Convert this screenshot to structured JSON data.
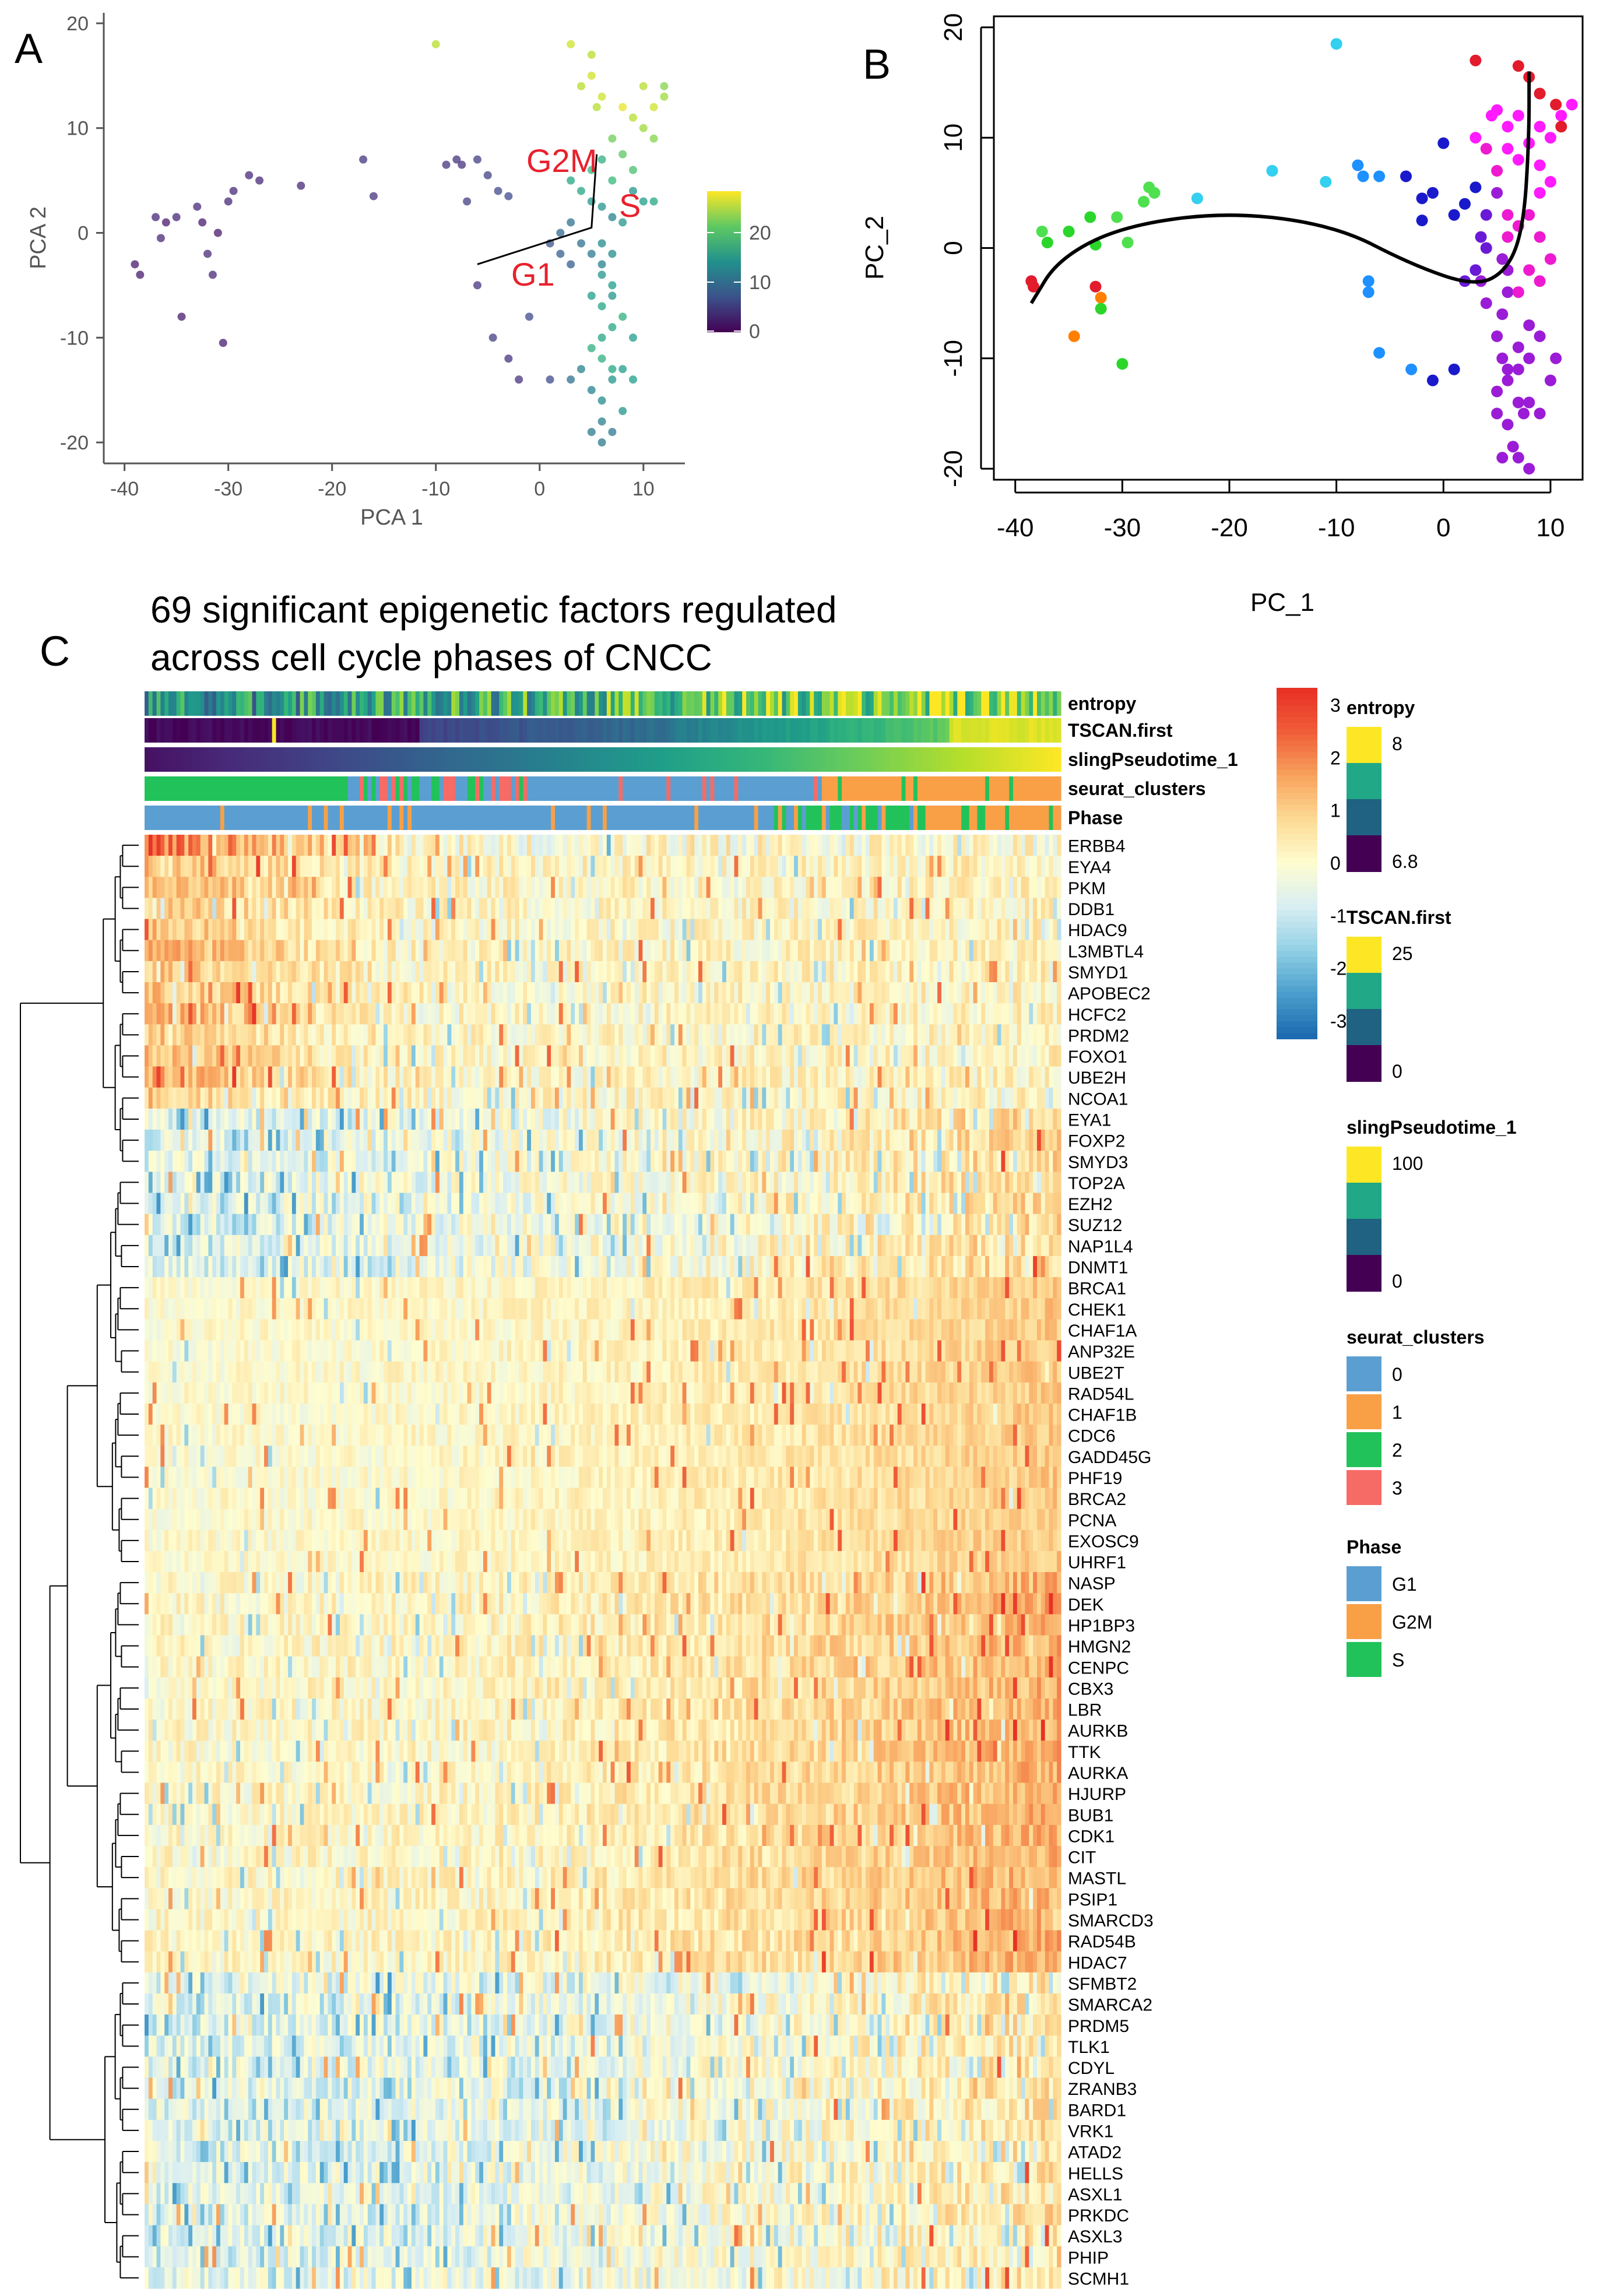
{
  "panels": {
    "a": {
      "letter": "A",
      "xlabel": "PCA 1",
      "ylabel": "PCA 2",
      "colorbar_ticks": [
        "20",
        "10",
        "0"
      ],
      "phase_labels": [
        "G2M",
        "S",
        "G1"
      ]
    },
    "b": {
      "letter": "B",
      "xlabel": "PC_1",
      "ylabel": "PC_2"
    },
    "c": {
      "letter": "C",
      "title_line1": "69 significant epigenetic factors regulated",
      "title_line2": "across cell cycle phases of CNCC"
    }
  },
  "chart_data": [
    {
      "type": "scatter",
      "panel": "A",
      "xlabel": "PCA 1",
      "ylabel": "PCA 2",
      "xlim": [
        -42,
        14
      ],
      "ylim": [
        -22,
        21
      ],
      "xticks": [
        -40,
        -30,
        -20,
        -10,
        0,
        10
      ],
      "yticks": [
        -20,
        -10,
        0,
        10,
        20
      ],
      "color_scale": {
        "name": "viridis",
        "range": [
          0,
          27
        ],
        "ticks": [
          0,
          10,
          20
        ]
      },
      "points": [
        [
          -39,
          -3,
          2
        ],
        [
          -38.5,
          -4,
          2
        ],
        [
          -37,
          1.5,
          3
        ],
        [
          -36.5,
          -0.5,
          3
        ],
        [
          -36,
          1,
          2
        ],
        [
          -35,
          1.5,
          3
        ],
        [
          -34.5,
          -8,
          2
        ],
        [
          -33,
          2.5,
          3
        ],
        [
          -32.5,
          1,
          2
        ],
        [
          -32,
          -2,
          3
        ],
        [
          -31.5,
          -4,
          3
        ],
        [
          -31,
          0,
          2
        ],
        [
          -30.5,
          -10.5,
          2
        ],
        [
          -30,
          3,
          3
        ],
        [
          -29.5,
          4,
          3
        ],
        [
          -28,
          5.5,
          3
        ],
        [
          -27,
          5,
          3
        ],
        [
          -23,
          4.5,
          3
        ],
        [
          -17,
          7,
          4
        ],
        [
          -16,
          3.5,
          4
        ],
        [
          -9,
          6.5,
          4
        ],
        [
          -8,
          7,
          4
        ],
        [
          -7.5,
          6.5,
          4
        ],
        [
          -7,
          3,
          5
        ],
        [
          -6,
          7,
          5
        ],
        [
          -5,
          5.5,
          5
        ],
        [
          -4,
          4,
          6
        ],
        [
          -3,
          3.5,
          6
        ],
        [
          -4.5,
          -10,
          5
        ],
        [
          -6,
          -5,
          4
        ],
        [
          -3,
          -12,
          4
        ],
        [
          -2,
          -14,
          4
        ],
        [
          -1,
          -8,
          6
        ],
        [
          1,
          -14,
          6
        ],
        [
          -10,
          18,
          24
        ],
        [
          3,
          18,
          25
        ],
        [
          5,
          17,
          24
        ],
        [
          5,
          15,
          25
        ],
        [
          4,
          14,
          24
        ],
        [
          5.5,
          12,
          24
        ],
        [
          6,
          13,
          25
        ],
        [
          8,
          12,
          26
        ],
        [
          9,
          11,
          24
        ],
        [
          10,
          10,
          23
        ],
        [
          11,
          12,
          25
        ],
        [
          7,
          9,
          21
        ],
        [
          8,
          7.5,
          20
        ],
        [
          6,
          7,
          17
        ],
        [
          5,
          6,
          18
        ],
        [
          3,
          5,
          16
        ],
        [
          4,
          4,
          16
        ],
        [
          5,
          3,
          14
        ],
        [
          6,
          2.5,
          14
        ],
        [
          7,
          1.5,
          12
        ],
        [
          3,
          1,
          10
        ],
        [
          2,
          0,
          9
        ],
        [
          4,
          -1,
          10
        ],
        [
          5,
          -2,
          11
        ],
        [
          6,
          -3,
          12
        ],
        [
          7,
          -2,
          13
        ],
        [
          3,
          -3,
          8
        ],
        [
          2,
          -2,
          8
        ],
        [
          1,
          -1,
          7
        ],
        [
          6,
          -4,
          14
        ],
        [
          7,
          -5,
          15
        ],
        [
          5,
          -6,
          15
        ],
        [
          6,
          -7,
          16
        ],
        [
          8,
          -8,
          17
        ],
        [
          7,
          -9,
          16
        ],
        [
          6,
          -10,
          16
        ],
        [
          5,
          -11,
          17
        ],
        [
          6,
          -12,
          17
        ],
        [
          7,
          -13,
          16
        ],
        [
          4,
          -13,
          12
        ],
        [
          3,
          -14,
          10
        ],
        [
          5,
          -15,
          12
        ],
        [
          6,
          -16,
          13
        ],
        [
          7,
          -14,
          14
        ],
        [
          8,
          -13,
          15
        ],
        [
          9,
          -14,
          15
        ],
        [
          6,
          -18,
          12
        ],
        [
          7,
          -19,
          11
        ],
        [
          5,
          -19,
          11
        ],
        [
          6,
          -20,
          11
        ],
        [
          8,
          -17,
          14
        ],
        [
          6,
          -1,
          13
        ],
        [
          8,
          1,
          14
        ],
        [
          9,
          4,
          14
        ],
        [
          10,
          3,
          15
        ],
        [
          7,
          5,
          18
        ],
        [
          9,
          6,
          19
        ],
        [
          11,
          9,
          22
        ],
        [
          12,
          13,
          23
        ],
        [
          10,
          14,
          24
        ],
        [
          12,
          14,
          22
        ],
        [
          11,
          3,
          16
        ],
        [
          7,
          -6,
          14
        ],
        [
          9,
          -10,
          15
        ]
      ],
      "trajectory": [
        [
          -6,
          -3
        ],
        [
          5,
          0.5
        ],
        [
          5.5,
          7.5
        ]
      ]
    },
    {
      "type": "scatter",
      "panel": "B",
      "xlabel": "PC_1",
      "ylabel": "PC_2",
      "xlim": [
        -42,
        13
      ],
      "ylim": [
        -21,
        21
      ],
      "xticks": [
        -40,
        -30,
        -20,
        -10,
        0,
        10
      ],
      "yticks": [
        -20,
        -10,
        0,
        10,
        20
      ],
      "colors": [
        "#e21c2c",
        "#ff7f00",
        "#2bd62b",
        "#4fe04f",
        "#33d0f0",
        "#1e90ff",
        "#1a1acc",
        "#6a1ad6",
        "#9b1cd6",
        "#ff1aff",
        "#ee1ad0"
      ],
      "points": [
        [
          -38.5,
          -3,
          0
        ],
        [
          -38.3,
          -3.5,
          0
        ],
        [
          -37.5,
          1.5,
          3
        ],
        [
          -37,
          0.5,
          2
        ],
        [
          -35,
          1.5,
          2
        ],
        [
          -34.5,
          -8,
          1
        ],
        [
          -33,
          2.8,
          2
        ],
        [
          -32.5,
          0.3,
          2
        ],
        [
          -32.5,
          -3.5,
          0
        ],
        [
          -32,
          -4.5,
          1
        ],
        [
          -32,
          -5.5,
          2
        ],
        [
          -30.5,
          2.8,
          3
        ],
        [
          -29.5,
          0.5,
          3
        ],
        [
          -30,
          -10.5,
          2
        ],
        [
          -28,
          4.2,
          3
        ],
        [
          -27.5,
          5.5,
          3
        ],
        [
          -27,
          5,
          3
        ],
        [
          -23,
          4.5,
          4
        ],
        [
          -16,
          7,
          4
        ],
        [
          -10,
          18.5,
          4
        ],
        [
          -11,
          6,
          4
        ],
        [
          -8,
          7.5,
          5
        ],
        [
          -7.5,
          6.5,
          5
        ],
        [
          -7,
          -3,
          5
        ],
        [
          -7,
          -4,
          5
        ],
        [
          -6,
          6.5,
          5
        ],
        [
          -6,
          -9.5,
          5
        ],
        [
          -3,
          -11,
          5
        ],
        [
          -3.5,
          6.5,
          6
        ],
        [
          -2,
          4.5,
          6
        ],
        [
          -1,
          5,
          6
        ],
        [
          -2,
          2.5,
          6
        ],
        [
          -1,
          -12,
          6
        ],
        [
          1,
          -11,
          6
        ],
        [
          0,
          9.5,
          6
        ],
        [
          1,
          3,
          6
        ],
        [
          2,
          4,
          6
        ],
        [
          3,
          5.5,
          6
        ],
        [
          2,
          -3,
          7
        ],
        [
          3,
          -2,
          7
        ],
        [
          3.5,
          1,
          7
        ],
        [
          4,
          0,
          7
        ],
        [
          4,
          3,
          7
        ],
        [
          5,
          5,
          8
        ],
        [
          5.5,
          -1,
          8
        ],
        [
          6,
          -2,
          8
        ],
        [
          6,
          -4,
          8
        ],
        [
          5.5,
          -6,
          8
        ],
        [
          5,
          -8,
          8
        ],
        [
          5.5,
          -10,
          8
        ],
        [
          6,
          -12,
          8
        ],
        [
          5,
          -13,
          8
        ],
        [
          7,
          -14,
          8
        ],
        [
          7.5,
          -15,
          8
        ],
        [
          8,
          -14,
          8
        ],
        [
          9,
          -15,
          8
        ],
        [
          6,
          -16,
          8
        ],
        [
          6.5,
          -18,
          8
        ],
        [
          7,
          -19,
          8
        ],
        [
          5.5,
          -19,
          8
        ],
        [
          8,
          -20,
          8
        ],
        [
          6,
          -11,
          8
        ],
        [
          7,
          -9,
          8
        ],
        [
          8,
          -10,
          8
        ],
        [
          4,
          -5,
          8
        ],
        [
          3.5,
          -3,
          8
        ],
        [
          4.5,
          12,
          9
        ],
        [
          3,
          17,
          0
        ],
        [
          5,
          12.5,
          9
        ],
        [
          6,
          11,
          9
        ],
        [
          7,
          12,
          9
        ],
        [
          9,
          11,
          9
        ],
        [
          10,
          10,
          9
        ],
        [
          11,
          12,
          9
        ],
        [
          12,
          13,
          9
        ],
        [
          6,
          9,
          9
        ],
        [
          7,
          8,
          9
        ],
        [
          8,
          9.5,
          9
        ],
        [
          9,
          7.5,
          9
        ],
        [
          10,
          6,
          9
        ],
        [
          9,
          5,
          9
        ],
        [
          8,
          3,
          10
        ],
        [
          7,
          2,
          10
        ],
        [
          6,
          1,
          10
        ],
        [
          9,
          1,
          10
        ],
        [
          10,
          -1,
          10
        ],
        [
          8,
          -2,
          10
        ],
        [
          7,
          -4,
          10
        ],
        [
          9,
          -3,
          10
        ],
        [
          6,
          3,
          10
        ],
        [
          5,
          7,
          10
        ],
        [
          4,
          9,
          10
        ],
        [
          3,
          10,
          9
        ],
        [
          7,
          16.5,
          0
        ],
        [
          8,
          15.5,
          0
        ],
        [
          9,
          14,
          0
        ],
        [
          10.5,
          13,
          0
        ],
        [
          11,
          11,
          0
        ],
        [
          8,
          -7,
          8
        ],
        [
          9,
          -8,
          8
        ],
        [
          7,
          -11,
          8
        ],
        [
          5,
          -15,
          8
        ],
        [
          10,
          -12,
          8
        ],
        [
          10.5,
          -10,
          8
        ]
      ],
      "trajectory": [
        [
          -38.5,
          -5
        ],
        [
          -36,
          -1
        ],
        [
          -30,
          2
        ],
        [
          -20,
          3.3
        ],
        [
          -10,
          2
        ],
        [
          -3,
          -1.5
        ],
        [
          3,
          -3.5
        ],
        [
          6,
          -2
        ],
        [
          7.5,
          2
        ],
        [
          8,
          10
        ],
        [
          8,
          16
        ]
      ]
    },
    {
      "type": "heatmap",
      "panel": "C",
      "title": "69 significant epigenetic factors regulated across cell cycle phases of CNCC",
      "n_cells": 230,
      "value_range": [
        -3,
        3
      ],
      "color_scale": {
        "ticks": [
          "3",
          "2",
          "1",
          "0",
          "-1",
          "-2",
          "-3"
        ],
        "colors": [
          "#e83225",
          "#f0603a",
          "#f8a45e",
          "#fddb95",
          "#fefdd0",
          "#d9eef3",
          "#93d1e6",
          "#4b9fcc",
          "#1d6bb0"
        ]
      },
      "annotation_rows": [
        "entropy",
        "TSCAN.first",
        "slingPseudotime_1",
        "seurat_clusters",
        "Phase"
      ],
      "genes": [
        "ERBB4",
        "EYA4",
        "PKM",
        "DDB1",
        "HDAC9",
        "L3MBTL4",
        "SMYD1",
        "APOBEC2",
        "HCFC2",
        "PRDM2",
        "FOXO1",
        "UBE2H",
        "NCOA1",
        "EYA1",
        "FOXP2",
        "SMYD3",
        "TOP2A",
        "EZH2",
        "SUZ12",
        "NAP1L4",
        "DNMT1",
        "BRCA1",
        "CHEK1",
        "CHAF1A",
        "ANP32E",
        "UBE2T",
        "RAD54L",
        "CHAF1B",
        "CDC6",
        "GADD45G",
        "PHF19",
        "BRCA2",
        "PCNA",
        "EXOSC9",
        "UHRF1",
        "NASP",
        "DEK",
        "HP1BP3",
        "HMGN2",
        "CENPC",
        "CBX3",
        "LBR",
        "AURKB",
        "TTK",
        "AURKA",
        "HJURP",
        "BUB1",
        "CDK1",
        "CIT",
        "MASTL",
        "PSIP1",
        "SMARCD3",
        "RAD54B",
        "HDAC7",
        "SFMBT2",
        "SMARCA2",
        "PRDM5",
        "TLK1",
        "CDYL",
        "ZRANB3",
        "BARD1",
        "VRK1",
        "ATAD2",
        "HELLS",
        "ASXL1",
        "PRKDC",
        "ASXL3",
        "PHIP",
        "SCMH1"
      ],
      "legends": [
        {
          "title": "entropy",
          "labels": [
            "8",
            "6.8"
          ],
          "colors": [
            "#fde725",
            "#21a886",
            "#1f6282",
            "#440154"
          ]
        },
        {
          "title": "TSCAN.first",
          "labels": [
            "25",
            "0"
          ],
          "colors": [
            "#fde725",
            "#21a886",
            "#1f6282",
            "#440154"
          ]
        },
        {
          "title": "slingPseudotime_1",
          "labels": [
            "100",
            "0"
          ],
          "colors": [
            "#fde725",
            "#21a886",
            "#1f6282",
            "#440154"
          ]
        },
        {
          "title": "seurat_clusters",
          "labels": [
            "0",
            "1",
            "2",
            "3"
          ],
          "colors": [
            "#5b9fd2",
            "#f9a047",
            "#22c25a",
            "#f66b66"
          ]
        },
        {
          "title": "Phase",
          "labels": [
            "G1",
            "G2M",
            "S"
          ],
          "colors": [
            "#5b9fd2",
            "#f9a047",
            "#22c25a"
          ]
        }
      ]
    }
  ]
}
